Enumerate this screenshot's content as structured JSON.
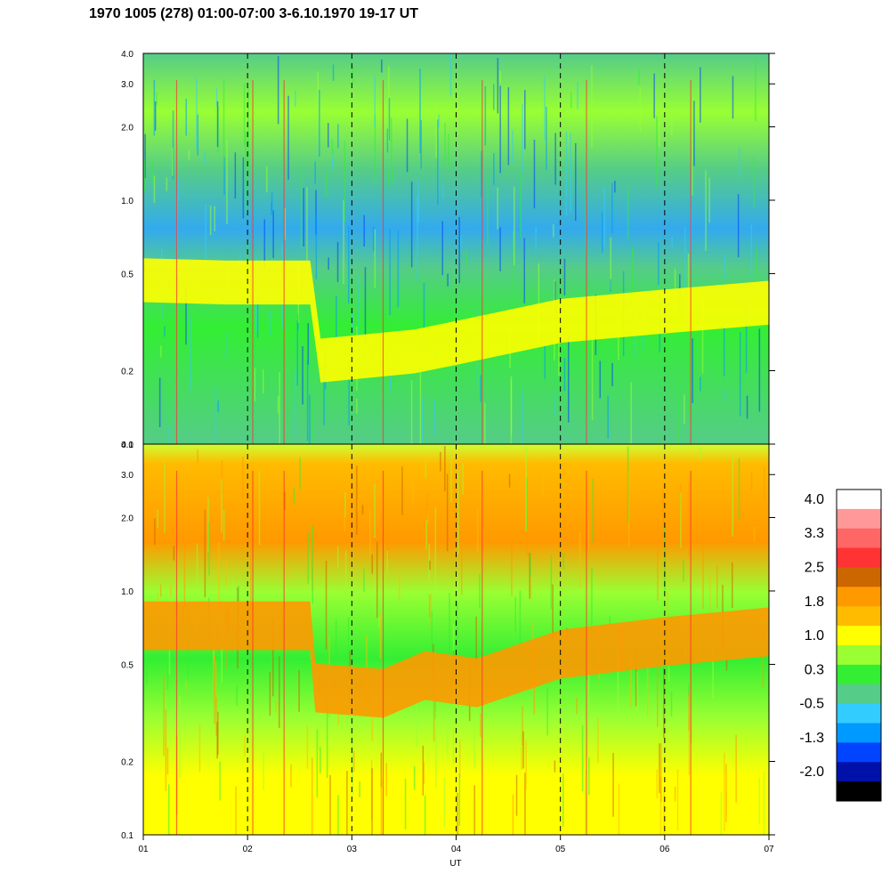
{
  "chart_data": {
    "type": "heatmap",
    "title": "1970 1005 (278) 01:00-07:00 3-6.10.1970  19-17 UT",
    "xlabel": "UT",
    "x_ticks": [
      "01",
      "02",
      "03",
      "04",
      "05",
      "06",
      "07"
    ],
    "x_range": [
      1,
      7
    ],
    "y_scale": "log",
    "colorbar": {
      "levels": [
        4.0,
        3.3,
        2.5,
        1.8,
        1.0,
        0.3,
        -0.5,
        -1.3,
        -2.0
      ],
      "colors": [
        "#ffffff",
        "#ff9999",
        "#ff6666",
        "#ff3333",
        "#cc6600",
        "#ff9900",
        "#ffbb00",
        "#ffff00",
        "#99ff33",
        "#33ee33",
        "#55cc88",
        "#33ccff",
        "#0099ff",
        "#0044ff",
        "#0011aa",
        "#000000"
      ]
    },
    "panels": [
      {
        "ylim": [
          0.1,
          4.0
        ],
        "y_ticks": [
          "0.1",
          "0.2",
          "0.5",
          "1.0",
          "2.0",
          "3.0",
          "4.0"
        ],
        "y_tick_values": [
          0.1,
          0.2,
          0.5,
          1.0,
          2.0,
          3.0,
          4.0
        ],
        "background_level": "green",
        "band": [
          [
            1.0,
            0.47
          ],
          [
            1.8,
            0.46
          ],
          [
            2.6,
            0.46
          ],
          [
            2.7,
            0.22
          ],
          [
            3.6,
            0.24
          ],
          [
            4.0,
            0.26
          ],
          [
            5.0,
            0.32
          ],
          [
            6.0,
            0.35
          ],
          [
            7.0,
            0.38
          ]
        ]
      },
      {
        "ylim": [
          0.1,
          4.0
        ],
        "y_ticks": [
          "0.1",
          "0.2",
          "0.5",
          "1.0",
          "2.0",
          "3.0",
          "4.0"
        ],
        "y_tick_values": [
          0.1,
          0.2,
          0.5,
          1.0,
          2.0,
          3.0,
          4.0
        ],
        "background_level": "yellow-orange",
        "band": [
          [
            1.0,
            0.72
          ],
          [
            2.6,
            0.72
          ],
          [
            2.65,
            0.4
          ],
          [
            3.3,
            0.38
          ],
          [
            3.7,
            0.45
          ],
          [
            4.2,
            0.42
          ],
          [
            5.0,
            0.55
          ],
          [
            6.0,
            0.62
          ],
          [
            7.0,
            0.68
          ]
        ]
      }
    ]
  }
}
